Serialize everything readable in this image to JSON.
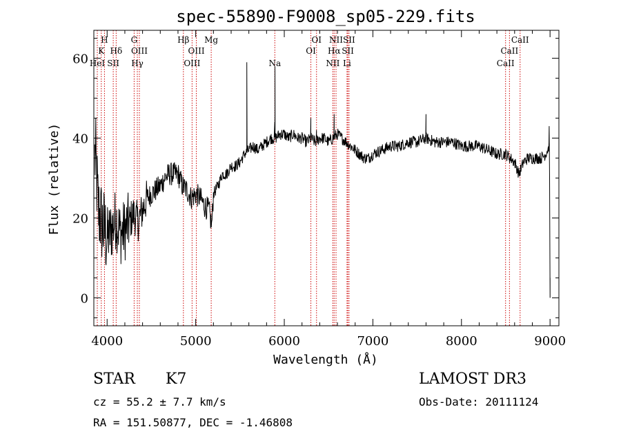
{
  "chart_data": {
    "type": "line",
    "title": "spec-55890-F9008_sp05-229.fits",
    "xlabel": "Wavelength (Å)",
    "ylabel": "Flux (relative)",
    "xlim": [
      3850,
      9100
    ],
    "ylim": [
      -7,
      67
    ],
    "xticks": [
      4000,
      5000,
      6000,
      7000,
      8000,
      9000
    ],
    "yticks": [
      0,
      20,
      40,
      60
    ],
    "spectrum_anchors": [
      [
        3870,
        35
      ],
      [
        3900,
        22
      ],
      [
        3950,
        18
      ],
      [
        4000,
        15
      ],
      [
        4050,
        17
      ],
      [
        4100,
        20
      ],
      [
        4150,
        16
      ],
      [
        4200,
        17
      ],
      [
        4250,
        19
      ],
      [
        4300,
        21
      ],
      [
        4350,
        19
      ],
      [
        4400,
        22
      ],
      [
        4450,
        25
      ],
      [
        4500,
        26
      ],
      [
        4550,
        27
      ],
      [
        4600,
        28
      ],
      [
        4650,
        30
      ],
      [
        4700,
        31
      ],
      [
        4750,
        31
      ],
      [
        4800,
        31
      ],
      [
        4850,
        28
      ],
      [
        4900,
        27
      ],
      [
        4950,
        25
      ],
      [
        5000,
        26
      ],
      [
        5050,
        25
      ],
      [
        5100,
        23
      ],
      [
        5150,
        22
      ],
      [
        5180,
        18
      ],
      [
        5200,
        26
      ],
      [
        5250,
        28
      ],
      [
        5300,
        31
      ],
      [
        5350,
        31
      ],
      [
        5400,
        33
      ],
      [
        5450,
        33
      ],
      [
        5500,
        34
      ],
      [
        5550,
        36
      ],
      [
        5600,
        37
      ],
      [
        5650,
        38
      ],
      [
        5700,
        37
      ],
      [
        5750,
        38
      ],
      [
        5800,
        39
      ],
      [
        5850,
        40
      ],
      [
        5900,
        40
      ],
      [
        5950,
        41
      ],
      [
        6000,
        41
      ],
      [
        6050,
        40
      ],
      [
        6100,
        41
      ],
      [
        6150,
        40
      ],
      [
        6200,
        40
      ],
      [
        6250,
        39
      ],
      [
        6300,
        40
      ],
      [
        6350,
        39
      ],
      [
        6400,
        40
      ],
      [
        6450,
        40
      ],
      [
        6500,
        39
      ],
      [
        6550,
        40
      ],
      [
        6600,
        41
      ],
      [
        6650,
        40
      ],
      [
        6700,
        39
      ],
      [
        6750,
        38
      ],
      [
        6800,
        37
      ],
      [
        6850,
        36
      ],
      [
        6900,
        35
      ],
      [
        6950,
        35
      ],
      [
        7000,
        36
      ],
      [
        7100,
        37
      ],
      [
        7200,
        38
      ],
      [
        7300,
        38
      ],
      [
        7400,
        39
      ],
      [
        7500,
        39
      ],
      [
        7600,
        40
      ],
      [
        7700,
        39
      ],
      [
        7800,
        39
      ],
      [
        7900,
        39
      ],
      [
        8000,
        38
      ],
      [
        8100,
        38
      ],
      [
        8200,
        38
      ],
      [
        8300,
        37
      ],
      [
        8400,
        36
      ],
      [
        8500,
        36
      ],
      [
        8550,
        35
      ],
      [
        8600,
        34
      ],
      [
        8650,
        31
      ],
      [
        8700,
        34
      ],
      [
        8750,
        35
      ],
      [
        8800,
        35
      ],
      [
        8850,
        35
      ],
      [
        8900,
        35
      ],
      [
        8950,
        36
      ],
      [
        8990,
        38
      ]
    ],
    "spikes": [
      [
        5577,
        59
      ],
      [
        5577,
        41
      ],
      [
        5895,
        58
      ],
      [
        5895,
        46
      ],
      [
        5892,
        44
      ],
      [
        6300,
        45
      ],
      [
        6364,
        42
      ],
      [
        6563,
        46
      ],
      [
        7600,
        46
      ],
      [
        7620,
        41
      ],
      [
        8990,
        43
      ],
      [
        8995,
        30
      ],
      [
        9000,
        5
      ],
      [
        9000,
        0
      ]
    ],
    "noise": [
      {
        "from": 3850,
        "to": 4000,
        "amplitude": 11
      },
      {
        "from": 4000,
        "to": 4250,
        "amplitude": 8
      },
      {
        "from": 4250,
        "to": 4450,
        "amplitude": 5
      },
      {
        "from": 4450,
        "to": 5200,
        "amplitude": 3
      },
      {
        "from": 5200,
        "to": 9000,
        "amplitude": 1.5
      }
    ],
    "lines": [
      {
        "label": "H",
        "wave": 3970,
        "row": 1
      },
      {
        "label": "K",
        "wave": 3934,
        "row": 2
      },
      {
        "label": "HeI",
        "wave": 3889,
        "row": 3
      },
      {
        "label": "Hδ",
        "wave": 4102,
        "row": 2
      },
      {
        "label": "SII",
        "wave": 4069,
        "row": 3
      },
      {
        "label": "G",
        "wave": 4305,
        "row": 1
      },
      {
        "label": "OIII",
        "wave": 4364,
        "row": 2
      },
      {
        "label": "Hγ",
        "wave": 4341,
        "row": 3
      },
      {
        "label": "Hβ",
        "wave": 4861,
        "row": 1
      },
      {
        "label": "OIII",
        "wave": 5007,
        "row": 2
      },
      {
        "label": "OIII",
        "wave": 4959,
        "row": 3
      },
      {
        "label": "Mg",
        "wave": 5175,
        "row": 1
      },
      {
        "label": "Na",
        "wave": 5893,
        "row": 3
      },
      {
        "label": "OI",
        "wave": 6364,
        "row": 1
      },
      {
        "label": "OI",
        "wave": 6300,
        "row": 2
      },
      {
        "label": "NII",
        "wave": 6584,
        "row": 1
      },
      {
        "label": "Hα",
        "wave": 6563,
        "row": 2
      },
      {
        "label": "NII",
        "wave": 6548,
        "row": 3
      },
      {
        "label": "SII",
        "wave": 6731,
        "row": 1
      },
      {
        "label": "SII",
        "wave": 6717,
        "row": 2
      },
      {
        "label": "Li",
        "wave": 6708,
        "row": 3
      },
      {
        "label": "CaII",
        "wave": 8662,
        "row": 1
      },
      {
        "label": "CaII",
        "wave": 8542,
        "row": 2
      },
      {
        "label": "CaII",
        "wave": 8498,
        "row": 3
      }
    ],
    "line_color": "#cc0000",
    "spectrum_color": "#000000"
  },
  "info": {
    "object_class": "STAR",
    "subclass": "K7",
    "survey": "LAMOST DR3",
    "redshift": "cz = 55.2 ± 7.7 km/s",
    "obs_date": "Obs-Date: 20111124",
    "coordinates": "RA = 151.50877, DEC =  -1.46808"
  }
}
